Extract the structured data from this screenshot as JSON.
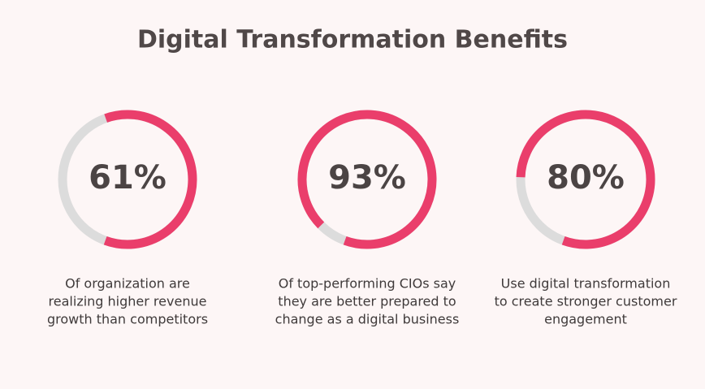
{
  "title": "Digital Transformation Benefits",
  "chart_data": [
    {
      "type": "progress-ring",
      "values": [
        61
      ],
      "value_labels": [
        "61%"
      ],
      "ylim": [
        0,
        100
      ],
      "color": "#ea3e6b",
      "track_color": "#dcdcdc",
      "caption": [
        "Of  organization are",
        "realizing higher revenue",
        "growth than competitors"
      ]
    },
    {
      "type": "progress-ring",
      "values": [
        93
      ],
      "value_labels": [
        "93%"
      ],
      "ylim": [
        0,
        100
      ],
      "color": "#ea3e6b",
      "track_color": "#dcdcdc",
      "caption": [
        "Of top-performing CIOs say",
        "they are better prepared to",
        "change as a digital business"
      ]
    },
    {
      "type": "progress-ring",
      "values": [
        80
      ],
      "value_labels": [
        "80%"
      ],
      "ylim": [
        0,
        100
      ],
      "color": "#ea3e6b",
      "track_color": "#dcdcdc",
      "caption": [
        "Use digital transformation",
        "to create stronger customer",
        "engagement"
      ]
    }
  ]
}
